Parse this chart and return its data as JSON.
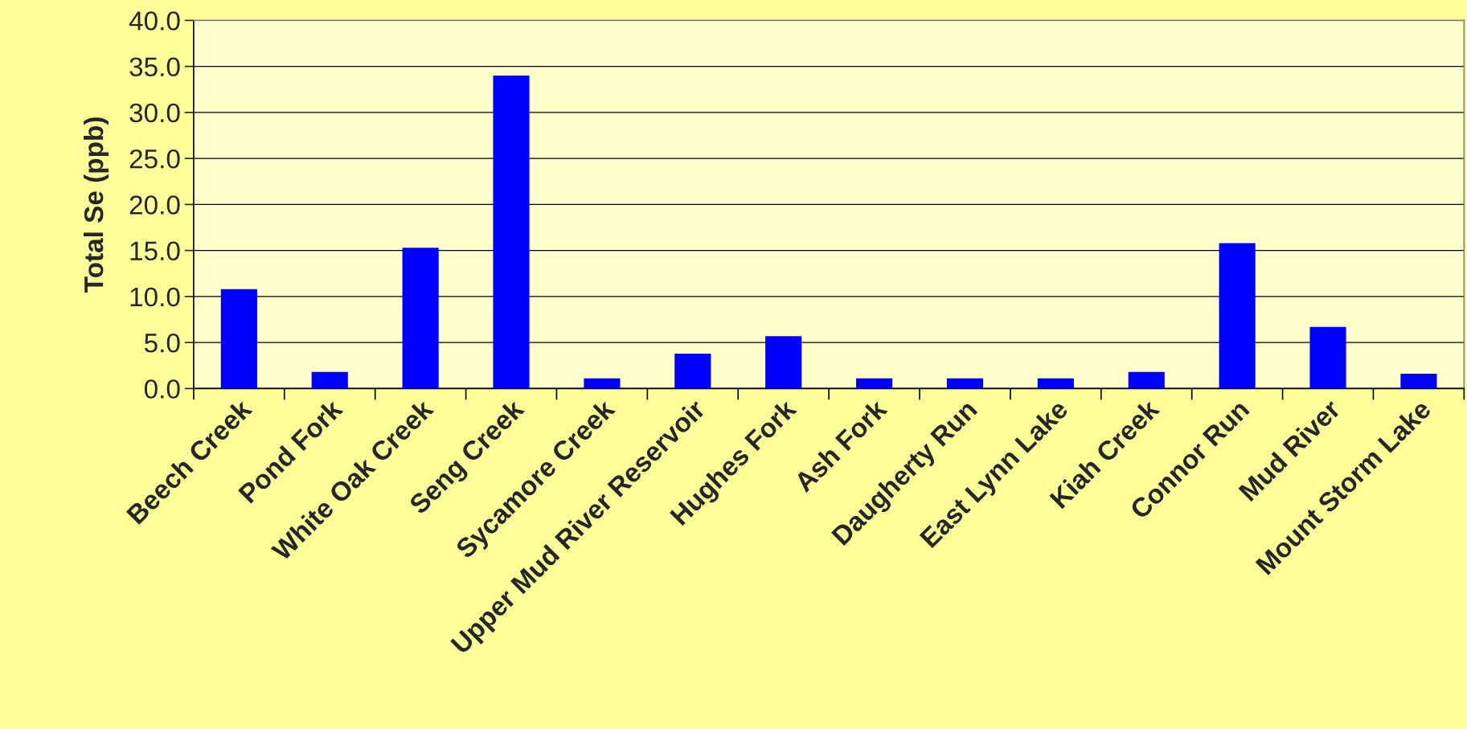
{
  "chart_data": {
    "type": "bar",
    "ylabel": "Total Se (ppb)",
    "categories": [
      "Beech Creek",
      "Pond Fork",
      "White Oak Creek",
      "Seng Creek",
      "Sycamore Creek",
      "Upper Mud River Reservoir",
      "Hughes Fork",
      "Ash Fork",
      "Daugherty Run",
      "East Lynn Lake",
      "Kiah Creek",
      "Connor Run",
      "Mud River",
      "Mount Storm Lake"
    ],
    "values": [
      10.8,
      1.8,
      15.3,
      34.0,
      1.1,
      3.8,
      5.7,
      1.1,
      1.1,
      1.1,
      1.8,
      15.8,
      6.7,
      1.6
    ],
    "color": "#0000ff",
    "ylim": [
      0,
      40
    ],
    "yticks": [
      {
        "value": 0,
        "label": "0.0"
      },
      {
        "value": 5,
        "label": "5.0"
      },
      {
        "value": 10,
        "label": "10.0"
      },
      {
        "value": 15,
        "label": "15.0"
      },
      {
        "value": 20,
        "label": "20.0"
      },
      {
        "value": 25,
        "label": "25.0"
      },
      {
        "value": 30,
        "label": "30.0"
      },
      {
        "value": 35,
        "label": "35.0"
      },
      {
        "value": 40,
        "label": "40.0"
      }
    ],
    "grid": "y",
    "legend": false
  }
}
